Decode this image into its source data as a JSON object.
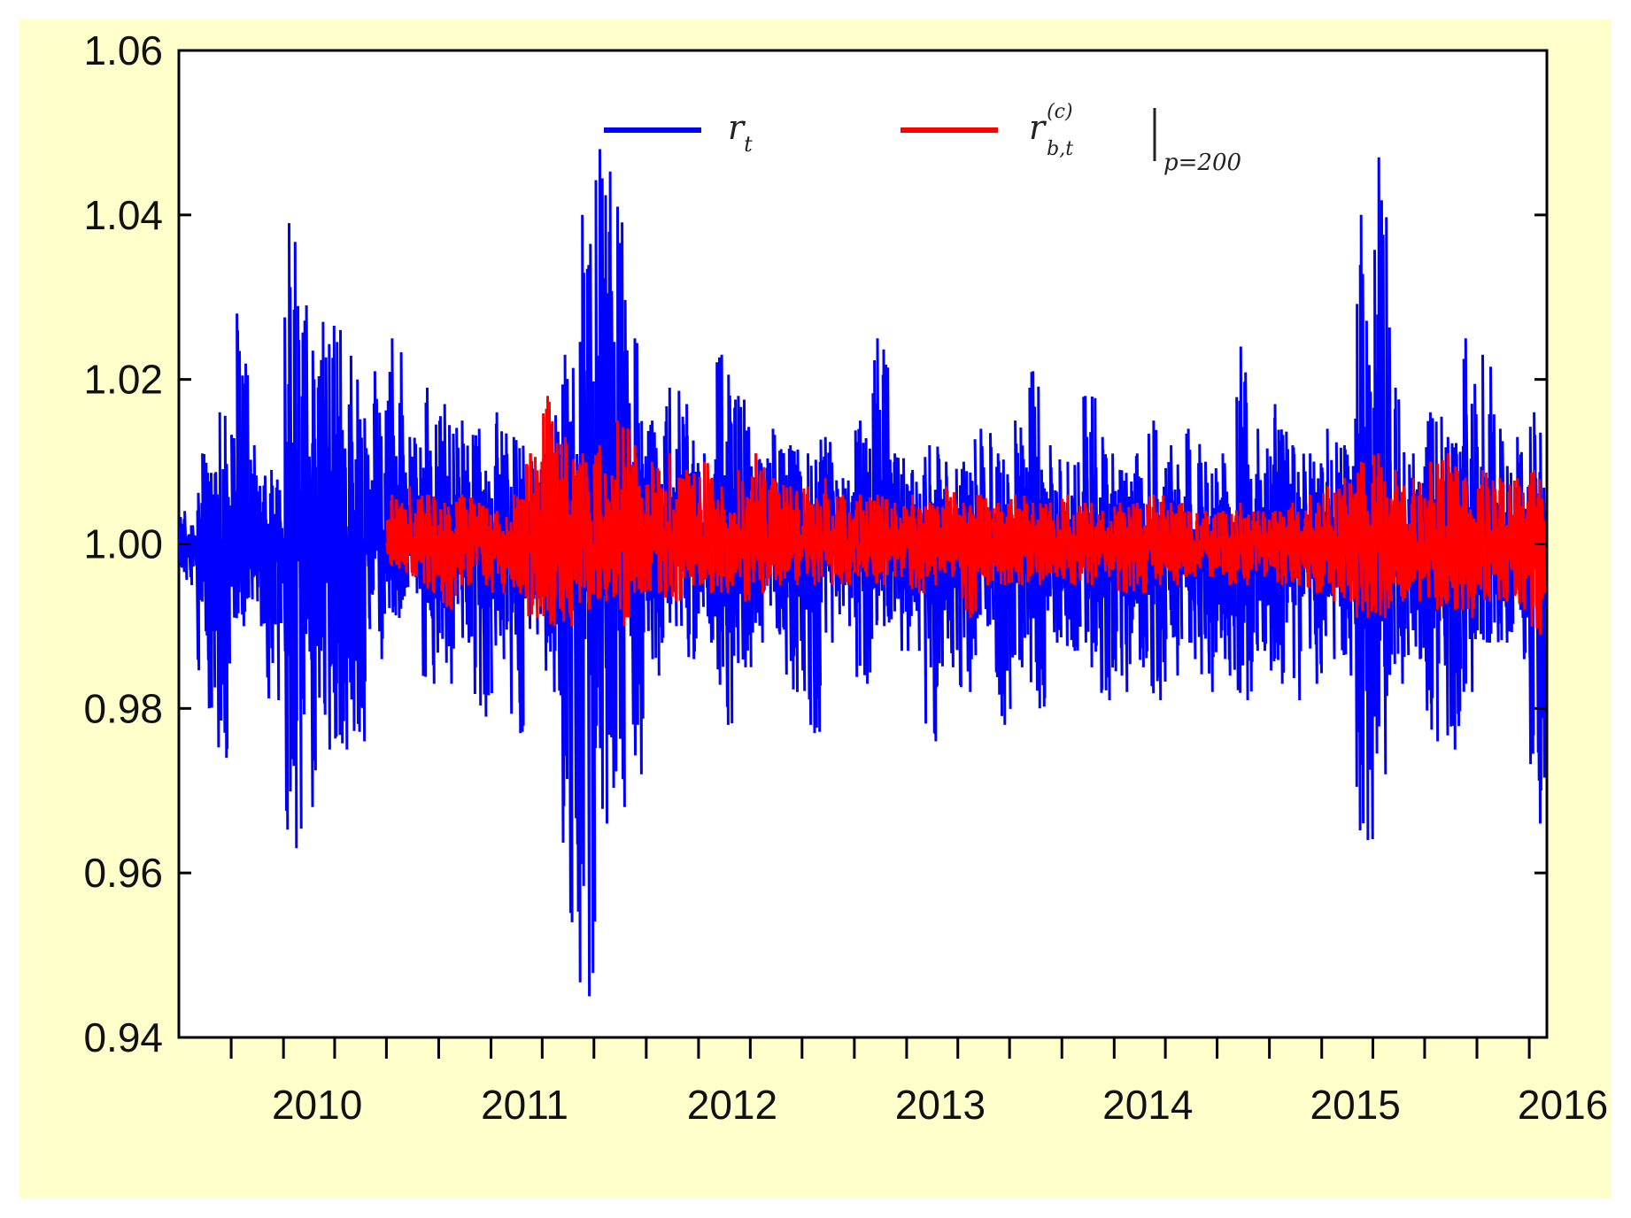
{
  "chart_data": {
    "type": "line",
    "title": "",
    "xlabel": "",
    "ylabel": "",
    "ylim": [
      0.94,
      1.06
    ],
    "xlim": [
      "2009-07-01",
      "2016-02-01"
    ],
    "y_ticks": [
      "0.94",
      "0.96",
      "0.98",
      "1.00",
      "1.02",
      "1.04",
      "1.06"
    ],
    "x_tick_labels": [
      {
        "date": "2010-01-01",
        "label": "2010"
      },
      {
        "date": "2011-01-01",
        "label": "2011"
      },
      {
        "date": "2012-01-01",
        "label": "2012"
      },
      {
        "date": "2013-01-01",
        "label": "2013"
      },
      {
        "date": "2014-01-01",
        "label": "2014"
      },
      {
        "date": "2015-01-01",
        "label": "2015"
      },
      {
        "date": "2016-01-01",
        "label": "2016"
      }
    ],
    "x_minor_tick_dates": [
      "2009-10-01",
      "2010-04-01",
      "2010-07-01",
      "2010-10-01",
      "2011-04-01",
      "2011-07-01",
      "2011-10-01",
      "2012-04-01",
      "2012-07-01",
      "2012-10-01",
      "2013-04-01",
      "2013-07-01",
      "2013-10-01",
      "2014-04-01",
      "2014-07-01",
      "2014-10-01",
      "2015-04-01",
      "2015-07-01",
      "2015-10-01"
    ],
    "grid": false,
    "legend": {
      "placement": "top-center",
      "entries": [
        {
          "symbol": "r",
          "subscript": "t",
          "color": "#0000ff"
        },
        {
          "symbol": "r",
          "superscript": "(c)",
          "subscript": "b,t",
          "condition": "p=200",
          "color": "#ff0000"
        }
      ]
    },
    "series": [
      {
        "color": "#0000ff",
        "x": [
          "2009-07-01",
          "2009-08-01",
          "2009-09-01",
          "2009-10-01",
          "2009-11-01",
          "2009-12-01",
          "2010-01-01",
          "2010-02-01",
          "2010-03-01",
          "2010-04-01",
          "2010-05-01",
          "2010-06-01",
          "2010-07-01",
          "2010-08-01",
          "2010-09-01",
          "2010-10-01",
          "2010-11-01",
          "2010-12-01",
          "2011-01-01",
          "2011-02-01",
          "2011-03-01",
          "2011-04-01",
          "2011-05-01",
          "2011-06-01",
          "2011-07-01",
          "2011-08-01",
          "2011-09-01",
          "2011-10-01",
          "2011-11-01",
          "2011-12-01",
          "2012-01-01",
          "2012-02-01",
          "2012-03-01",
          "2012-04-01",
          "2012-05-01",
          "2012-06-01",
          "2012-07-01",
          "2012-08-01",
          "2012-09-01",
          "2012-10-01",
          "2012-11-01",
          "2012-12-01",
          "2013-01-01",
          "2013-02-01",
          "2013-03-01",
          "2013-04-01",
          "2013-05-01",
          "2013-06-01",
          "2013-07-01",
          "2013-08-01",
          "2013-09-01",
          "2013-10-01",
          "2013-11-01",
          "2013-12-01",
          "2014-01-01",
          "2014-02-01",
          "2014-03-01",
          "2014-04-01",
          "2014-05-01",
          "2014-06-01",
          "2014-07-01",
          "2014-08-01",
          "2014-09-01",
          "2014-10-01",
          "2014-11-01",
          "2014-12-01",
          "2015-01-01",
          "2015-02-01",
          "2015-03-01",
          "2015-04-01",
          "2015-05-01",
          "2015-06-01",
          "2015-07-01",
          "2015-08-01",
          "2015-09-01",
          "2015-10-01",
          "2015-11-01",
          "2015-12-01",
          "2016-01-01"
        ],
        "high": [
          1.004,
          1.011,
          1.016,
          1.028,
          1.012,
          1.009,
          1.039,
          1.029,
          1.027,
          1.026,
          1.02,
          1.021,
          1.025,
          1.013,
          1.019,
          1.017,
          1.015,
          1.014,
          1.016,
          1.013,
          1.011,
          1.016,
          1.023,
          1.04,
          1.048,
          1.041,
          1.025,
          1.015,
          1.019,
          1.017,
          1.011,
          1.023,
          1.018,
          1.011,
          1.014,
          1.012,
          1.011,
          1.013,
          1.008,
          1.015,
          1.025,
          1.011,
          1.009,
          1.012,
          1.01,
          1.01,
          1.014,
          1.011,
          1.015,
          1.021,
          1.012,
          1.01,
          1.018,
          1.013,
          1.009,
          1.011,
          1.015,
          1.012,
          1.014,
          1.01,
          1.011,
          1.024,
          1.014,
          1.017,
          1.012,
          1.011,
          1.014,
          1.012,
          1.04,
          1.047,
          1.019,
          1.011,
          1.016,
          1.013,
          1.025,
          1.023,
          1.014,
          1.013,
          1.016
        ],
        "low": [
          0.995,
          0.98,
          0.974,
          0.99,
          0.99,
          0.981,
          0.963,
          0.968,
          0.975,
          0.975,
          0.976,
          0.986,
          0.991,
          0.994,
          0.983,
          0.983,
          0.988,
          0.979,
          0.986,
          0.977,
          0.989,
          0.982,
          0.954,
          0.945,
          0.966,
          0.968,
          0.972,
          0.984,
          0.99,
          0.986,
          0.988,
          0.978,
          0.985,
          0.988,
          0.989,
          0.982,
          0.977,
          0.988,
          0.99,
          0.983,
          0.99,
          0.987,
          0.987,
          0.976,
          0.985,
          0.982,
          0.99,
          0.978,
          0.985,
          0.98,
          0.988,
          0.987,
          0.985,
          0.981,
          0.982,
          0.985,
          0.981,
          0.984,
          0.986,
          0.982,
          0.984,
          0.981,
          0.987,
          0.983,
          0.981,
          0.983,
          0.986,
          0.984,
          0.964,
          0.972,
          0.983,
          0.986,
          0.976,
          0.975,
          0.982,
          0.988,
          0.988,
          0.986,
          0.966
        ]
      },
      {
        "color": "#ff0000",
        "x": [
          "2010-07-01",
          "2010-08-01",
          "2010-09-01",
          "2010-10-01",
          "2010-11-01",
          "2010-12-01",
          "2011-01-01",
          "2011-02-01",
          "2011-03-01",
          "2011-04-01",
          "2011-05-01",
          "2011-06-01",
          "2011-07-01",
          "2011-08-01",
          "2011-09-01",
          "2011-10-01",
          "2011-11-01",
          "2011-12-01",
          "2012-01-01",
          "2012-02-01",
          "2012-03-01",
          "2012-04-01",
          "2012-05-01",
          "2012-06-01",
          "2012-07-01",
          "2012-08-01",
          "2012-09-01",
          "2012-10-01",
          "2012-11-01",
          "2012-12-01",
          "2013-01-01",
          "2013-02-01",
          "2013-03-01",
          "2013-04-01",
          "2013-05-01",
          "2013-06-01",
          "2013-07-01",
          "2013-08-01",
          "2013-09-01",
          "2013-10-01",
          "2013-11-01",
          "2013-12-01",
          "2014-01-01",
          "2014-02-01",
          "2014-03-01",
          "2014-04-01",
          "2014-05-01",
          "2014-06-01",
          "2014-07-01",
          "2014-08-01",
          "2014-09-01",
          "2014-10-01",
          "2014-11-01",
          "2014-12-01",
          "2015-01-01",
          "2015-02-01",
          "2015-03-01",
          "2015-04-01",
          "2015-05-01",
          "2015-06-01",
          "2015-07-01",
          "2015-08-01",
          "2015-09-01",
          "2015-10-01",
          "2015-11-01",
          "2015-12-01",
          "2016-01-01"
        ],
        "high": [
          1.006,
          1.007,
          1.006,
          1.005,
          1.006,
          1.005,
          1.004,
          1.006,
          1.011,
          1.018,
          1.013,
          1.011,
          1.012,
          1.015,
          1.012,
          1.01,
          1.011,
          1.009,
          1.01,
          1.007,
          1.009,
          1.011,
          1.008,
          1.007,
          1.007,
          1.008,
          1.006,
          1.006,
          1.006,
          1.005,
          1.006,
          1.005,
          1.007,
          1.005,
          1.006,
          1.005,
          1.006,
          1.005,
          1.005,
          1.006,
          1.005,
          1.004,
          1.005,
          1.005,
          1.006,
          1.005,
          1.004,
          1.004,
          1.004,
          1.005,
          1.004,
          1.004,
          1.005,
          1.006,
          1.007,
          1.008,
          1.01,
          1.011,
          1.009,
          1.008,
          1.01,
          1.011,
          1.008,
          1.009,
          1.008,
          1.008,
          1.009
        ],
        "low": [
          0.997,
          0.996,
          0.994,
          0.992,
          0.995,
          0.995,
          0.994,
          0.994,
          0.991,
          0.99,
          0.99,
          0.992,
          0.993,
          0.99,
          0.994,
          0.994,
          0.993,
          0.995,
          0.994,
          0.994,
          0.993,
          0.994,
          0.995,
          0.995,
          0.995,
          0.995,
          0.995,
          0.996,
          0.995,
          0.996,
          0.994,
          0.995,
          0.996,
          0.991,
          0.995,
          0.995,
          0.995,
          0.995,
          0.996,
          0.995,
          0.995,
          0.996,
          0.994,
          0.994,
          0.995,
          0.995,
          0.996,
          0.996,
          0.995,
          0.995,
          0.996,
          0.995,
          0.995,
          0.994,
          0.993,
          0.993,
          0.991,
          0.991,
          0.993,
          0.993,
          0.992,
          0.992,
          0.991,
          0.993,
          0.993,
          0.992,
          0.989
        ]
      }
    ]
  }
}
